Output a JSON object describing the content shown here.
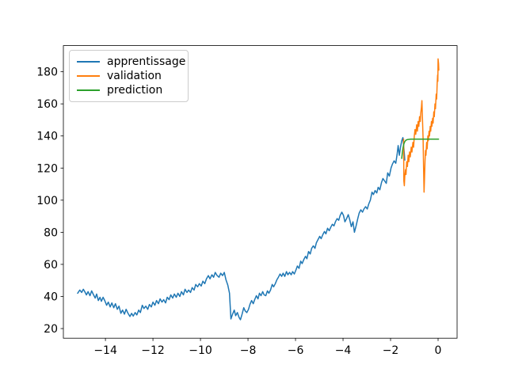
{
  "chart_data": {
    "type": "line",
    "title": "",
    "xlabel": "",
    "ylabel": "",
    "grid": false,
    "background": "#ffffff",
    "xlim": [
      -15.77,
      0.8
    ],
    "ylim": [
      14.0,
      196.3
    ],
    "x_ticks": [
      {
        "value": -14,
        "label": "−14"
      },
      {
        "value": -12,
        "label": "−12"
      },
      {
        "value": -10,
        "label": "−10"
      },
      {
        "value": -8,
        "label": "−8"
      },
      {
        "value": -6,
        "label": "−6"
      },
      {
        "value": -4,
        "label": "−4"
      },
      {
        "value": -2,
        "label": "−2"
      },
      {
        "value": 0,
        "label": "0"
      }
    ],
    "y_ticks": [
      {
        "value": 20,
        "label": "20"
      },
      {
        "value": 40,
        "label": "40"
      },
      {
        "value": 60,
        "label": "60"
      },
      {
        "value": 80,
        "label": "80"
      },
      {
        "value": 100,
        "label": "100"
      },
      {
        "value": 120,
        "label": "120"
      },
      {
        "value": 140,
        "label": "140"
      },
      {
        "value": 160,
        "label": "160"
      },
      {
        "value": 180,
        "label": "180"
      }
    ],
    "legend": {
      "position": "upper-left"
    },
    "series": [
      {
        "name": "apprentissage",
        "color": "#1f77b4",
        "points": [
          [
            -15.17,
            42
          ],
          [
            -15.08,
            44
          ],
          [
            -15.0,
            42.5
          ],
          [
            -14.93,
            44.5
          ],
          [
            -14.87,
            43
          ],
          [
            -14.8,
            41
          ],
          [
            -14.73,
            43
          ],
          [
            -14.65,
            40.5
          ],
          [
            -14.58,
            43.5
          ],
          [
            -14.5,
            41
          ],
          [
            -14.43,
            39
          ],
          [
            -14.37,
            41.5
          ],
          [
            -14.3,
            37.5
          ],
          [
            -14.23,
            39.5
          ],
          [
            -14.17,
            37
          ],
          [
            -14.1,
            39.5
          ],
          [
            -14.03,
            37.5
          ],
          [
            -13.95,
            34.5
          ],
          [
            -13.88,
            36.5
          ],
          [
            -13.8,
            33.5
          ],
          [
            -13.73,
            36
          ],
          [
            -13.65,
            33
          ],
          [
            -13.58,
            35.5
          ],
          [
            -13.5,
            32
          ],
          [
            -13.43,
            34
          ],
          [
            -13.35,
            29.5
          ],
          [
            -13.28,
            31.5
          ],
          [
            -13.2,
            29
          ],
          [
            -13.13,
            32
          ],
          [
            -13.05,
            29.5
          ],
          [
            -12.97,
            27.5
          ],
          [
            -12.9,
            29.5
          ],
          [
            -12.83,
            27.8
          ],
          [
            -12.75,
            30
          ],
          [
            -12.68,
            28.5
          ],
          [
            -12.6,
            31.5
          ],
          [
            -12.53,
            30
          ],
          [
            -12.45,
            34.5
          ],
          [
            -12.38,
            32.5
          ],
          [
            -12.3,
            34
          ],
          [
            -12.22,
            32
          ],
          [
            -12.15,
            35
          ],
          [
            -12.07,
            33.5
          ],
          [
            -12.0,
            36.5
          ],
          [
            -11.92,
            34.5
          ],
          [
            -11.85,
            37.5
          ],
          [
            -11.77,
            35.5
          ],
          [
            -11.7,
            38.5
          ],
          [
            -11.62,
            36.5
          ],
          [
            -11.55,
            38
          ],
          [
            -11.47,
            36
          ],
          [
            -11.4,
            39.5
          ],
          [
            -11.32,
            38
          ],
          [
            -11.25,
            41
          ],
          [
            -11.17,
            39
          ],
          [
            -11.1,
            41.5
          ],
          [
            -11.02,
            39.5
          ],
          [
            -10.95,
            42
          ],
          [
            -10.87,
            40
          ],
          [
            -10.8,
            43
          ],
          [
            -10.72,
            41
          ],
          [
            -10.65,
            44.5
          ],
          [
            -10.57,
            42.5
          ],
          [
            -10.5,
            44
          ],
          [
            -10.42,
            42.5
          ],
          [
            -10.35,
            45.5
          ],
          [
            -10.27,
            44
          ],
          [
            -10.2,
            47.5
          ],
          [
            -10.12,
            46
          ],
          [
            -10.05,
            48
          ],
          [
            -9.97,
            46.5
          ],
          [
            -9.9,
            49.5
          ],
          [
            -9.82,
            48
          ],
          [
            -9.75,
            51
          ],
          [
            -9.67,
            53
          ],
          [
            -9.6,
            51
          ],
          [
            -9.52,
            53.5
          ],
          [
            -9.45,
            52
          ],
          [
            -9.38,
            55
          ],
          [
            -9.3,
            53
          ],
          [
            -9.22,
            52
          ],
          [
            -9.15,
            54.5
          ],
          [
            -9.07,
            53
          ],
          [
            -9.0,
            55
          ],
          [
            -8.93,
            50.5
          ],
          [
            -8.85,
            47
          ],
          [
            -8.78,
            42
          ],
          [
            -8.72,
            26
          ],
          [
            -8.65,
            29
          ],
          [
            -8.58,
            31.5
          ],
          [
            -8.52,
            28
          ],
          [
            -8.45,
            30
          ],
          [
            -8.38,
            27
          ],
          [
            -8.32,
            25.5
          ],
          [
            -8.25,
            29
          ],
          [
            -8.18,
            33
          ],
          [
            -8.12,
            31
          ],
          [
            -8.05,
            30
          ],
          [
            -7.98,
            32
          ],
          [
            -7.92,
            35
          ],
          [
            -7.85,
            37.5
          ],
          [
            -7.78,
            35.5
          ],
          [
            -7.72,
            38
          ],
          [
            -7.65,
            40.5
          ],
          [
            -7.58,
            38.5
          ],
          [
            -7.52,
            42
          ],
          [
            -7.45,
            40.5
          ],
          [
            -7.38,
            43
          ],
          [
            -7.32,
            41
          ],
          [
            -7.25,
            40.5
          ],
          [
            -7.18,
            43.5
          ],
          [
            -7.12,
            42
          ],
          [
            -7.05,
            44
          ],
          [
            -6.98,
            47.5
          ],
          [
            -6.92,
            46
          ],
          [
            -6.85,
            48
          ],
          [
            -6.78,
            50.5
          ],
          [
            -6.72,
            52
          ],
          [
            -6.65,
            54
          ],
          [
            -6.58,
            52.5
          ],
          [
            -6.52,
            54.5
          ],
          [
            -6.45,
            52.5
          ],
          [
            -6.38,
            55.5
          ],
          [
            -6.32,
            53.5
          ],
          [
            -6.25,
            55
          ],
          [
            -6.18,
            53.5
          ],
          [
            -6.12,
            55.5
          ],
          [
            -6.05,
            54
          ],
          [
            -5.98,
            56.5
          ],
          [
            -5.92,
            59
          ],
          [
            -5.85,
            57.5
          ],
          [
            -5.78,
            62
          ],
          [
            -5.72,
            60.5
          ],
          [
            -5.65,
            63
          ],
          [
            -5.58,
            65
          ],
          [
            -5.52,
            63.5
          ],
          [
            -5.45,
            68
          ],
          [
            -5.38,
            66.5
          ],
          [
            -5.32,
            70
          ],
          [
            -5.25,
            71.5
          ],
          [
            -5.18,
            70
          ],
          [
            -5.12,
            73.5
          ],
          [
            -5.05,
            75.5
          ],
          [
            -4.98,
            77.5
          ],
          [
            -4.92,
            76
          ],
          [
            -4.85,
            78.5
          ],
          [
            -4.78,
            80.5
          ],
          [
            -4.72,
            79
          ],
          [
            -4.65,
            82.5
          ],
          [
            -4.58,
            81
          ],
          [
            -4.52,
            83
          ],
          [
            -4.45,
            85
          ],
          [
            -4.38,
            84
          ],
          [
            -4.32,
            86.5
          ],
          [
            -4.25,
            88.5
          ],
          [
            -4.18,
            87.5
          ],
          [
            -4.12,
            90.5
          ],
          [
            -4.05,
            92.5
          ],
          [
            -3.98,
            90.5
          ],
          [
            -3.92,
            86.5
          ],
          [
            -3.85,
            88.5
          ],
          [
            -3.78,
            91
          ],
          [
            -3.72,
            88
          ],
          [
            -3.65,
            83.5
          ],
          [
            -3.58,
            86.5
          ],
          [
            -3.52,
            80
          ],
          [
            -3.45,
            84
          ],
          [
            -3.38,
            88.5
          ],
          [
            -3.32,
            92
          ],
          [
            -3.25,
            94
          ],
          [
            -3.18,
            92.5
          ],
          [
            -3.12,
            94.5
          ],
          [
            -3.05,
            96
          ],
          [
            -2.98,
            94.5
          ],
          [
            -2.92,
            97.5
          ],
          [
            -2.85,
            100
          ],
          [
            -2.78,
            105
          ],
          [
            -2.72,
            103.5
          ],
          [
            -2.65,
            106
          ],
          [
            -2.58,
            104.5
          ],
          [
            -2.52,
            108
          ],
          [
            -2.45,
            106.5
          ],
          [
            -2.38,
            111
          ],
          [
            -2.32,
            113.5
          ],
          [
            -2.25,
            112
          ],
          [
            -2.18,
            110.5
          ],
          [
            -2.12,
            117
          ],
          [
            -2.05,
            115
          ],
          [
            -1.98,
            120
          ],
          [
            -1.92,
            122.5
          ],
          [
            -1.85,
            124.5
          ],
          [
            -1.78,
            123
          ],
          [
            -1.72,
            129
          ],
          [
            -1.68,
            134
          ],
          [
            -1.63,
            128
          ],
          [
            -1.58,
            133
          ],
          [
            -1.53,
            137
          ],
          [
            -1.48,
            139
          ],
          [
            -1.45,
            134
          ],
          [
            -1.42,
            129
          ],
          [
            -1.4,
            125
          ]
        ]
      },
      {
        "name": "validation",
        "color": "#ff7f0e",
        "points": [
          [
            -1.45,
            138
          ],
          [
            -1.44,
            112
          ],
          [
            -1.42,
            109
          ],
          [
            -1.4,
            115
          ],
          [
            -1.37,
            119
          ],
          [
            -1.35,
            116
          ],
          [
            -1.32,
            124
          ],
          [
            -1.29,
            121
          ],
          [
            -1.26,
            128
          ],
          [
            -1.23,
            124
          ],
          [
            -1.2,
            130
          ],
          [
            -1.17,
            127
          ],
          [
            -1.13,
            133
          ],
          [
            -1.1,
            130
          ],
          [
            -1.06,
            136
          ],
          [
            -1.03,
            133
          ],
          [
            -1.0,
            140
          ],
          [
            -0.97,
            144
          ],
          [
            -0.94,
            141
          ],
          [
            -0.9,
            147
          ],
          [
            -0.87,
            143
          ],
          [
            -0.84,
            149
          ],
          [
            -0.81,
            146
          ],
          [
            -0.78,
            152
          ],
          [
            -0.75,
            149
          ],
          [
            -0.73,
            154
          ],
          [
            -0.7,
            158
          ],
          [
            -0.68,
            162
          ],
          [
            -0.66,
            152
          ],
          [
            -0.63,
            138
          ],
          [
            -0.61,
            120
          ],
          [
            -0.59,
            105
          ],
          [
            -0.57,
            114
          ],
          [
            -0.55,
            124
          ],
          [
            -0.53,
            131
          ],
          [
            -0.51,
            128
          ],
          [
            -0.48,
            136
          ],
          [
            -0.46,
            132
          ],
          [
            -0.43,
            140
          ],
          [
            -0.41,
            137
          ],
          [
            -0.38,
            143
          ],
          [
            -0.36,
            140
          ],
          [
            -0.33,
            146
          ],
          [
            -0.31,
            143
          ],
          [
            -0.28,
            149
          ],
          [
            -0.26,
            146
          ],
          [
            -0.23,
            151
          ],
          [
            -0.21,
            148
          ],
          [
            -0.18,
            155
          ],
          [
            -0.16,
            152
          ],
          [
            -0.13,
            160
          ],
          [
            -0.11,
            157
          ],
          [
            -0.08,
            166
          ],
          [
            -0.06,
            163
          ],
          [
            -0.04,
            172
          ],
          [
            -0.02,
            178
          ],
          [
            -0.01,
            174
          ],
          [
            0.0,
            188
          ],
          [
            0.02,
            185
          ],
          [
            0.03,
            181
          ]
        ]
      },
      {
        "name": "prediction",
        "color": "#2ca02c",
        "points": [
          [
            -1.53,
            126
          ],
          [
            -1.5,
            130
          ],
          [
            -1.47,
            133
          ],
          [
            -1.44,
            135
          ],
          [
            -1.4,
            136.5
          ],
          [
            -1.35,
            137.4
          ],
          [
            -1.28,
            137.8
          ],
          [
            -1.15,
            138
          ],
          [
            -0.8,
            138
          ],
          [
            -0.4,
            138
          ],
          [
            0.02,
            138
          ]
        ]
      }
    ]
  }
}
